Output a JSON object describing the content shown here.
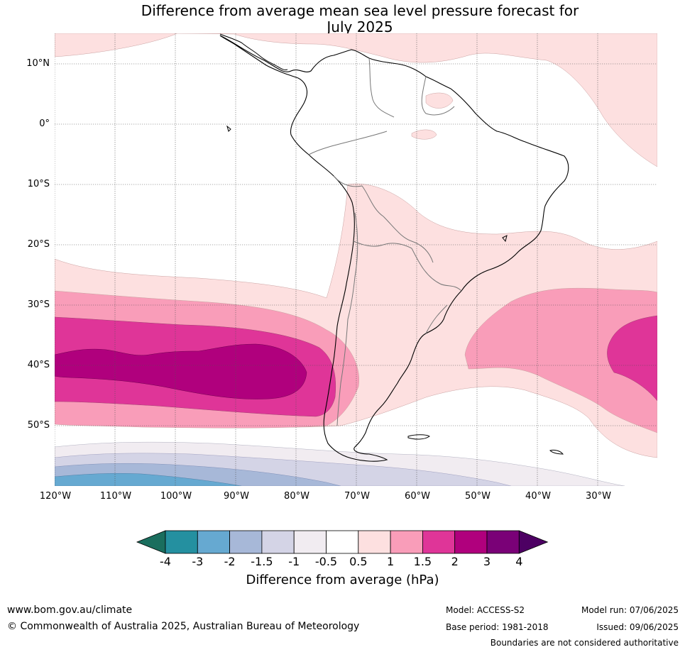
{
  "title_line1": "Difference from average mean sea level pressure forecast for",
  "title_line2": "July 2025",
  "lat_labels": [
    "10°N",
    "0°",
    "10°S",
    "20°S",
    "30°S",
    "40°S",
    "50°S"
  ],
  "lon_labels": [
    "120°W",
    "110°W",
    "100°W",
    "90°W",
    "80°W",
    "70°W",
    "60°W",
    "50°W",
    "40°W",
    "30°W"
  ],
  "colorbar": {
    "ticks": [
      "-4",
      "-3",
      "-2",
      "-1.5",
      "-1",
      "-0.5",
      "0.5",
      "1",
      "1.5",
      "2",
      "3",
      "4"
    ],
    "colors": [
      "#1a6e5e",
      "#2490a0",
      "#66a9d1",
      "#a7b8d8",
      "#d4d4e6",
      "#f1ecf1",
      "#ffffff",
      "#fde0e0",
      "#f99db9",
      "#df3598",
      "#b0007d",
      "#7a0177",
      "#4d0063"
    ],
    "title": "Difference from average (hPa)"
  },
  "footer": {
    "url": "www.bom.gov.au/climate",
    "copyright": "© Commonwealth of Australia 2025, Australian Bureau of Meteorology",
    "model": "Model: ACCESS-S2",
    "base_period": "Base period: 1981-2018",
    "model_run": "Model run: 07/06/2025",
    "issued": "Issued: 09/06/2025",
    "boundaries": "Boundaries are not considered authoritative"
  }
}
